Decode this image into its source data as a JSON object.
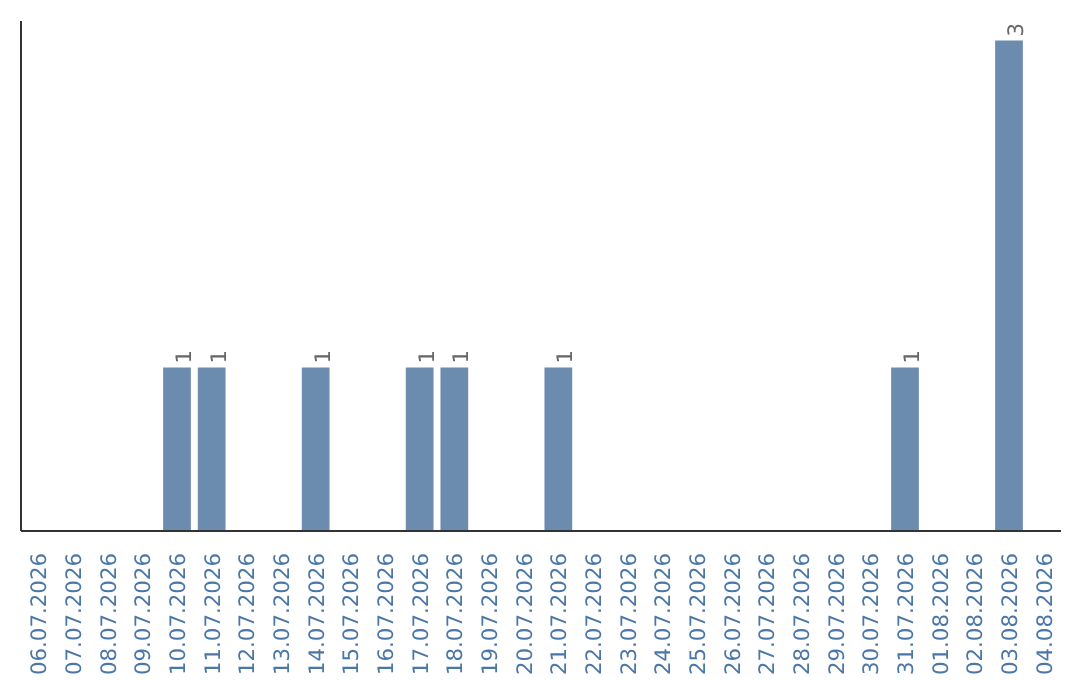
{
  "chart_data": {
    "type": "bar",
    "categories": [
      "06.07.2026",
      "07.07.2026",
      "08.07.2026",
      "09.07.2026",
      "10.07.2026",
      "11.07.2026",
      "12.07.2026",
      "13.07.2026",
      "14.07.2026",
      "15.07.2026",
      "16.07.2026",
      "17.07.2026",
      "18.07.2026",
      "19.07.2026",
      "20.07.2026",
      "21.07.2026",
      "22.07.2026",
      "23.07.2026",
      "24.07.2026",
      "25.07.2026",
      "26.07.2026",
      "27.07.2026",
      "28.07.2026",
      "29.07.2026",
      "30.07.2026",
      "31.07.2026",
      "01.08.2026",
      "02.08.2026",
      "03.08.2026",
      "04.08.2026"
    ],
    "values": [
      0,
      0,
      0,
      0,
      1,
      1,
      0,
      0,
      1,
      0,
      0,
      1,
      1,
      0,
      0,
      1,
      0,
      0,
      0,
      0,
      0,
      0,
      0,
      0,
      0,
      1,
      0,
      0,
      3,
      0
    ],
    "value_labels": [
      null,
      null,
      null,
      null,
      "1",
      "1",
      null,
      null,
      "1",
      null,
      null,
      "1",
      "1",
      null,
      null,
      "1",
      null,
      null,
      null,
      null,
      null,
      null,
      null,
      null,
      null,
      "1",
      null,
      null,
      "3",
      null
    ],
    "color": "#6b8cae",
    "grid": false,
    "tick_labels": "x"
  }
}
